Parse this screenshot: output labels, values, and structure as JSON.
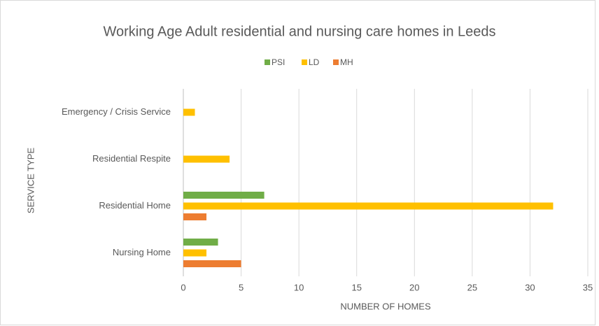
{
  "chart_data": {
    "type": "barh",
    "title": "Working Age Adult residential and nursing care homes in Leeds",
    "xlabel": "NUMBER OF HOMES",
    "ylabel": "SERVICE TYPE",
    "categories": [
      "Emergency / Crisis Service",
      "Residential Respite",
      "Residential Home",
      "Nursing Home"
    ],
    "series": [
      {
        "name": "PSI",
        "color": "#70ad47",
        "values": [
          0,
          0,
          7,
          3
        ]
      },
      {
        "name": "LD",
        "color": "#ffc000",
        "values": [
          1,
          4,
          32,
          2
        ]
      },
      {
        "name": "MH",
        "color": "#ed7d31",
        "values": [
          0,
          0,
          2,
          5
        ]
      }
    ],
    "xlim": [
      0,
      35
    ],
    "xticks": [
      0,
      5,
      10,
      15,
      20,
      25,
      30,
      35
    ],
    "grid": true,
    "legend": "top"
  }
}
